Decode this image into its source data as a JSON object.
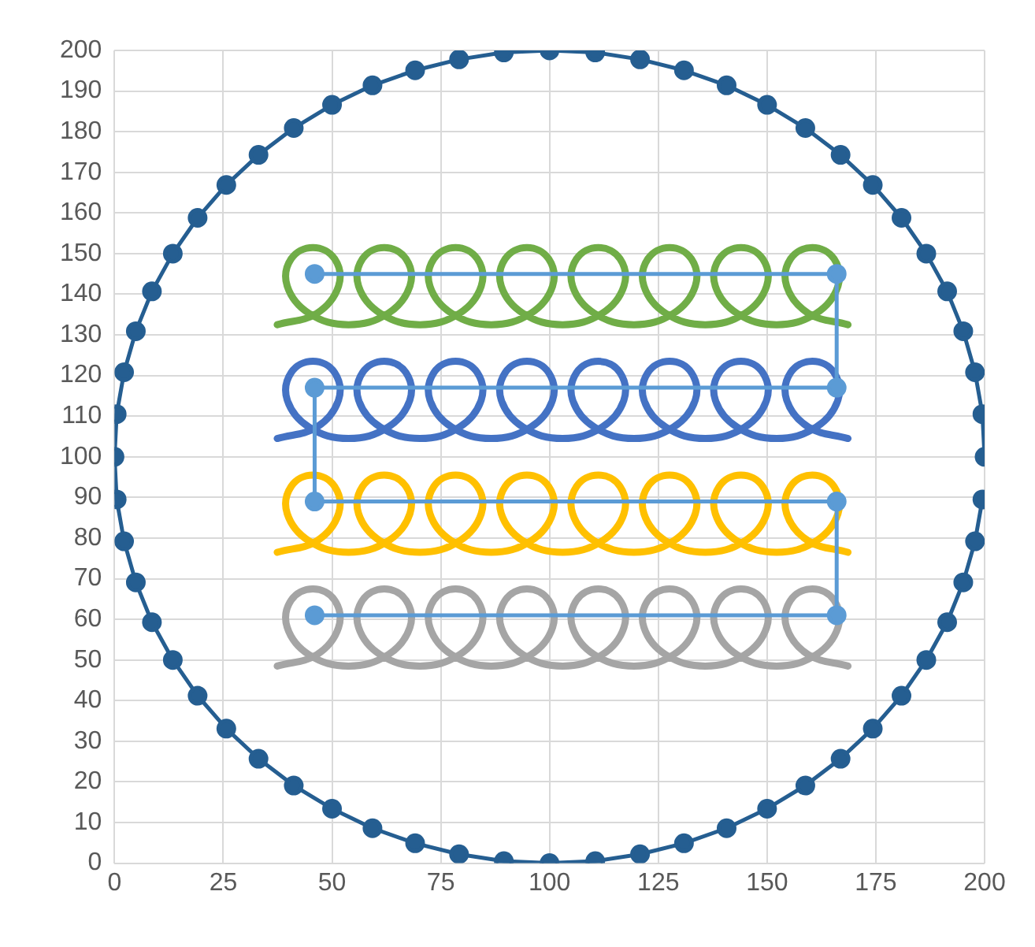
{
  "chart_data": {
    "type": "line",
    "xlim": [
      0,
      200
    ],
    "ylim": [
      0,
      200
    ],
    "xticks": [
      0,
      25,
      50,
      75,
      100,
      125,
      150,
      175,
      200
    ],
    "yticks": [
      0,
      10,
      20,
      30,
      40,
      50,
      60,
      70,
      80,
      90,
      100,
      110,
      120,
      130,
      140,
      150,
      160,
      170,
      180,
      190,
      200
    ],
    "grid": true,
    "series": [
      {
        "type": "line",
        "color": "#255e91",
        "marker": "circle",
        "x": [
          200,
          199.5,
          197.8,
          195.1,
          191.4,
          186.6,
          180.9,
          174.3,
          166.9,
          158.8,
          150,
          140.7,
          130.9,
          120.8,
          110.5,
          100,
          89.5,
          79.2,
          69.1,
          59.3,
          50,
          41.2,
          33.1,
          25.7,
          19.1,
          13.4,
          8.6,
          4.9,
          2.2,
          0.5,
          0,
          0.5,
          2.2,
          4.9,
          8.6,
          13.4,
          19.1,
          25.7,
          33.1,
          41.2,
          50,
          59.3,
          69.1,
          79.2,
          89.5,
          100,
          110.5,
          120.8,
          130.9,
          140.7,
          150,
          158.8,
          166.9,
          174.3,
          180.9,
          186.6,
          191.4,
          195.1,
          197.8,
          199.5
        ],
        "values": [
          100,
          110.5,
          120.8,
          130.9,
          140.7,
          150,
          158.8,
          166.9,
          174.3,
          180.9,
          186.6,
          191.4,
          195.1,
          197.8,
          199.5,
          200,
          199.5,
          197.8,
          195.1,
          191.4,
          186.6,
          180.9,
          174.3,
          166.9,
          158.8,
          150,
          140.7,
          130.9,
          120.8,
          110.5,
          100,
          89.5,
          79.2,
          69.1,
          59.3,
          50,
          41.2,
          33.1,
          25.7,
          19.1,
          13.4,
          8.6,
          4.9,
          2.2,
          0.5,
          0,
          0.5,
          2.2,
          4.9,
          8.6,
          13.4,
          19.1,
          25.7,
          33.1,
          41.2,
          50,
          59.3,
          69.1,
          79.2,
          89.5
        ]
      },
      {
        "color": "#70ad47",
        "marker": "none",
        "x": [
          37.4,
          46.5,
          51.5,
          50.6,
          45.6,
          40.6,
          39.7,
          44.7,
          53.8,
          62.9,
          67.9,
          67,
          62,
          57,
          56.1,
          61.1,
          70.2,
          79.3,
          84.3,
          83.4,
          78.4,
          73.4,
          72.5,
          77.5,
          86.6,
          95.7,
          100.7,
          99.8,
          94.8,
          89.8,
          88.9,
          93.9,
          103,
          112.1,
          117.1,
          116.2,
          111.2,
          106.2,
          105.3,
          110.3,
          119.4,
          128.5,
          133.5,
          132.6,
          127.6,
          122.6,
          121.7,
          126.7,
          135.8,
          144.9,
          149.9,
          149,
          144,
          139,
          138.1,
          143.1,
          152.2,
          161.3,
          166.3,
          165.4,
          160.4,
          155.4,
          154.5,
          159.5,
          168.6
        ],
        "values": [
          132.5,
          135.3,
          142,
          148.7,
          151.5,
          148.7,
          142,
          135.3,
          132.5,
          135.3,
          142,
          148.7,
          151.5,
          148.7,
          142,
          135.3,
          132.5,
          135.3,
          142,
          148.7,
          151.5,
          148.7,
          142,
          135.3,
          132.5,
          135.3,
          142,
          148.7,
          151.5,
          148.7,
          142,
          135.3,
          132.5,
          135.3,
          142,
          148.7,
          151.5,
          148.7,
          142,
          135.3,
          132.5,
          135.3,
          142,
          148.7,
          151.5,
          148.7,
          142,
          135.3,
          132.5,
          135.3,
          142,
          148.7,
          151.5,
          148.7,
          142,
          135.3,
          132.5,
          135.3,
          142,
          148.7,
          151.5,
          148.7,
          142,
          135.3,
          132.5
        ]
      },
      {
        "color": "#4472c4",
        "marker": "none",
        "x": [
          37.4,
          46.5,
          51.5,
          50.6,
          45.6,
          40.6,
          39.7,
          44.7,
          53.8,
          62.9,
          67.9,
          67,
          62,
          57,
          56.1,
          61.1,
          70.2,
          79.3,
          84.3,
          83.4,
          78.4,
          73.4,
          72.5,
          77.5,
          86.6,
          95.7,
          100.7,
          99.8,
          94.8,
          89.8,
          88.9,
          93.9,
          103,
          112.1,
          117.1,
          116.2,
          111.2,
          106.2,
          105.3,
          110.3,
          119.4,
          128.5,
          133.5,
          132.6,
          127.6,
          122.6,
          121.7,
          126.7,
          135.8,
          144.9,
          149.9,
          149,
          144,
          139,
          138.1,
          143.1,
          152.2,
          161.3,
          166.3,
          165.4,
          160.4,
          155.4,
          154.5,
          159.5,
          168.6
        ],
        "values": [
          104.5,
          107.3,
          114,
          120.7,
          123.5,
          120.7,
          114,
          107.3,
          104.5,
          107.3,
          114,
          120.7,
          123.5,
          120.7,
          114,
          107.3,
          104.5,
          107.3,
          114,
          120.7,
          123.5,
          120.7,
          114,
          107.3,
          104.5,
          107.3,
          114,
          120.7,
          123.5,
          120.7,
          114,
          107.3,
          104.5,
          107.3,
          114,
          120.7,
          123.5,
          120.7,
          114,
          107.3,
          104.5,
          107.3,
          114,
          120.7,
          123.5,
          120.7,
          114,
          107.3,
          104.5,
          107.3,
          114,
          120.7,
          123.5,
          120.7,
          114,
          107.3,
          104.5,
          107.3,
          114,
          120.7,
          123.5,
          120.7,
          114,
          107.3,
          104.5
        ]
      },
      {
        "color": "#ffc000",
        "marker": "none",
        "x": [
          37.4,
          46.5,
          51.5,
          50.6,
          45.6,
          40.6,
          39.7,
          44.7,
          53.8,
          62.9,
          67.9,
          67,
          62,
          57,
          56.1,
          61.1,
          70.2,
          79.3,
          84.3,
          83.4,
          78.4,
          73.4,
          72.5,
          77.5,
          86.6,
          95.7,
          100.7,
          99.8,
          94.8,
          89.8,
          88.9,
          93.9,
          103,
          112.1,
          117.1,
          116.2,
          111.2,
          106.2,
          105.3,
          110.3,
          119.4,
          128.5,
          133.5,
          132.6,
          127.6,
          122.6,
          121.7,
          126.7,
          135.8,
          144.9,
          149.9,
          149,
          144,
          139,
          138.1,
          143.1,
          152.2,
          161.3,
          166.3,
          165.4,
          160.4,
          155.4,
          154.5,
          159.5,
          168.6
        ],
        "values": [
          76.5,
          79.3,
          86,
          92.7,
          95.5,
          92.7,
          86,
          79.3,
          76.5,
          79.3,
          86,
          92.7,
          95.5,
          92.7,
          86,
          79.3,
          76.5,
          79.3,
          86,
          92.7,
          95.5,
          92.7,
          86,
          79.3,
          76.5,
          79.3,
          86,
          92.7,
          95.5,
          92.7,
          86,
          79.3,
          76.5,
          79.3,
          86,
          92.7,
          95.5,
          92.7,
          86,
          79.3,
          76.5,
          79.3,
          86,
          92.7,
          95.5,
          92.7,
          86,
          79.3,
          76.5,
          79.3,
          86,
          92.7,
          95.5,
          92.7,
          86,
          79.3,
          76.5,
          79.3,
          86,
          92.7,
          95.5,
          92.7,
          86,
          79.3,
          76.5
        ]
      },
      {
        "color": "#a5a5a5",
        "marker": "none",
        "x": [
          37.4,
          46.5,
          51.5,
          50.6,
          45.6,
          40.6,
          39.7,
          44.7,
          53.8,
          62.9,
          67.9,
          67,
          62,
          57,
          56.1,
          61.1,
          70.2,
          79.3,
          84.3,
          83.4,
          78.4,
          73.4,
          72.5,
          77.5,
          86.6,
          95.7,
          100.7,
          99.8,
          94.8,
          89.8,
          88.9,
          93.9,
          103,
          112.1,
          117.1,
          116.2,
          111.2,
          106.2,
          105.3,
          110.3,
          119.4,
          128.5,
          133.5,
          132.6,
          127.6,
          122.6,
          121.7,
          126.7,
          135.8,
          144.9,
          149.9,
          149,
          144,
          139,
          138.1,
          143.1,
          152.2,
          161.3,
          166.3,
          165.4,
          160.4,
          155.4,
          154.5,
          159.5,
          168.6
        ],
        "values": [
          48.5,
          51.3,
          58,
          64.7,
          67.5,
          64.7,
          58,
          51.3,
          48.5,
          51.3,
          58,
          64.7,
          67.5,
          64.7,
          58,
          51.3,
          48.5,
          51.3,
          58,
          64.7,
          67.5,
          64.7,
          58,
          51.3,
          48.5,
          51.3,
          58,
          64.7,
          67.5,
          64.7,
          58,
          51.3,
          48.5,
          51.3,
          58,
          64.7,
          67.5,
          64.7,
          58,
          51.3,
          48.5,
          51.3,
          58,
          64.7,
          67.5,
          64.7,
          58,
          51.3,
          48.5,
          51.3,
          58,
          64.7,
          67.5,
          64.7,
          58,
          51.3,
          48.5,
          51.3,
          58,
          64.7,
          67.5,
          64.7,
          58,
          51.3,
          48.5
        ]
      },
      {
        "color": "#5b9bd5",
        "marker": "circle",
        "x": [
          46,
          166,
          166,
          46,
          46,
          166,
          166,
          46
        ],
        "values": [
          145,
          145,
          117,
          117,
          89,
          89,
          61,
          61
        ]
      }
    ]
  }
}
